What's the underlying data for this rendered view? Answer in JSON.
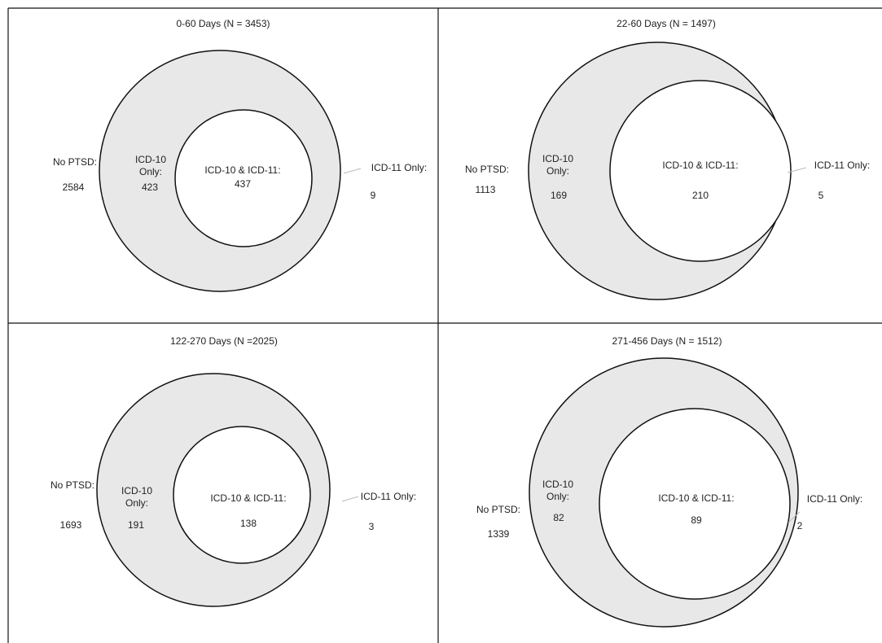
{
  "panels": [
    {
      "title": "0-60 Days (N = 3453)",
      "no_ptsd_label": "No PTSD:",
      "no_ptsd_value": "2584",
      "icd10_only_label_line1": "ICD-10",
      "icd10_only_label_line2": "Only:",
      "icd10_only_value": "423",
      "both_label": "ICD-10 & ICD-11:",
      "both_value": "437",
      "icd11_only_label": "ICD-11 Only:",
      "icd11_only_value": "9"
    },
    {
      "title": "22-60 Days (N = 1497)",
      "no_ptsd_label": "No PTSD:",
      "no_ptsd_value": "1113",
      "icd10_only_label_line1": "ICD-10",
      "icd10_only_label_line2": "Only:",
      "icd10_only_value": "169",
      "both_label": "ICD-10 & ICD-11:",
      "both_value": "210",
      "icd11_only_label": "ICD-11 Only:",
      "icd11_only_value": "5"
    },
    {
      "title": "122-270 Days (N =2025)",
      "no_ptsd_label": "No PTSD:",
      "no_ptsd_value": "1693",
      "icd10_only_label_line1": "ICD-10",
      "icd10_only_label_line2": "Only:",
      "icd10_only_value": "191",
      "both_label": "ICD-10 & ICD-11:",
      "both_value": "138",
      "icd11_only_label": "ICD-11 Only:",
      "icd11_only_value": "3"
    },
    {
      "title": "271-456 Days (N = 1512)",
      "no_ptsd_label": "No PTSD:",
      "no_ptsd_value": "1339",
      "icd10_only_label_line1": "ICD-10",
      "icd10_only_label_line2": "Only:",
      "icd10_only_value": "82",
      "both_label": "ICD-10 & ICD-11:",
      "both_value": "89",
      "icd11_only_label": "ICD-11 Only:",
      "icd11_only_value": "2"
    }
  ],
  "colors": {
    "large_circle_fill": "#e8e8e8",
    "inner_circle_fill": "#ffffff",
    "stroke": "#111111",
    "leader_line": "#bbbbbb"
  }
}
